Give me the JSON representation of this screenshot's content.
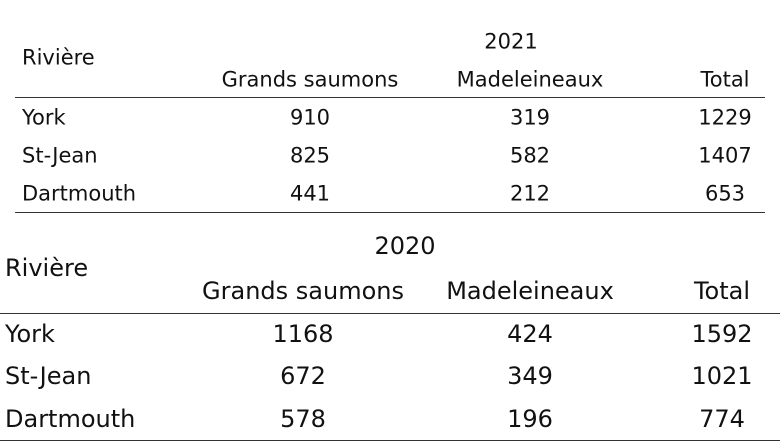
{
  "tables": [
    {
      "year": "2021",
      "row_header": "Rivière",
      "columns": [
        "Grands saumons",
        "Madeleineaux",
        "Total"
      ],
      "rows": [
        [
          "York",
          910,
          319,
          1229
        ],
        [
          "St-Jean",
          825,
          582,
          1407
        ],
        [
          "Dartmouth",
          441,
          212,
          653
        ]
      ]
    },
    {
      "year": "2020",
      "row_header": "Rivière",
      "columns": [
        "Grands saumons",
        "Madeleineaux",
        "Total"
      ],
      "rows": [
        [
          "York",
          1168,
          424,
          1592
        ],
        [
          "St-Jean",
          672,
          349,
          1021
        ],
        [
          "Dartmouth",
          578,
          196,
          774
        ]
      ]
    }
  ]
}
